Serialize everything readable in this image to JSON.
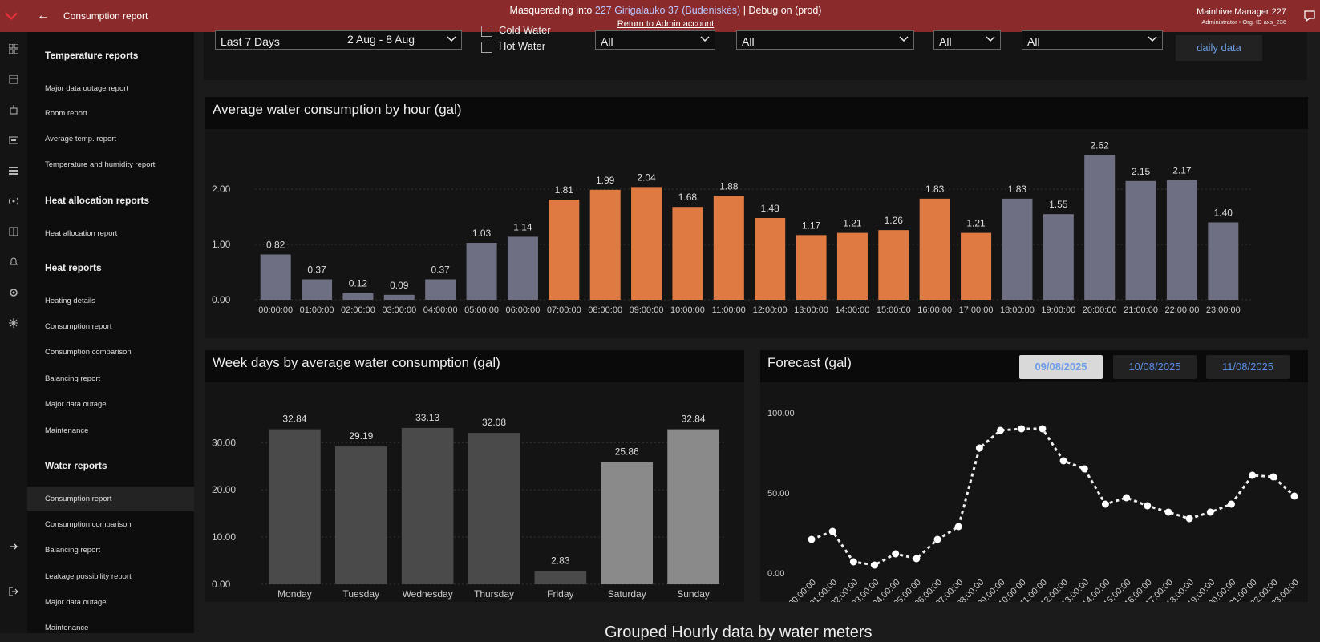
{
  "topbar": {
    "title": "Consumption report",
    "masq_prefix": "Masquerading into ",
    "masq_org": "227 Girigalauko 37 (Budeniskės)",
    "masq_suffix": " | Debug on (prod)",
    "return_link": "Return to Admin account",
    "user_name": "Mainhive Manager 227",
    "user_sub": "Administrator • Org. ID axs_236"
  },
  "sidebar": {
    "sections": [
      {
        "title": "Temperature reports",
        "items": [
          "Major data outage report",
          "Room report",
          "Average temp. report",
          "Temperature and humidity report"
        ]
      },
      {
        "title": "Heat allocation reports",
        "items": [
          "Heat allocation report"
        ]
      },
      {
        "title": "Heat reports",
        "items": [
          "Heating details",
          "Consumption report",
          "Consumption comparison",
          "Balancing report",
          "Major data outage",
          "Maintenance"
        ]
      },
      {
        "title": "Water reports",
        "items": [
          "Consumption report",
          "Consumption comparison",
          "Balancing report",
          "Leakage possibility report",
          "Major data outage",
          "Maintenance"
        ]
      }
    ],
    "active": "Consumption report"
  },
  "filters": {
    "period": "Last 7 Days",
    "period_range": "2 Aug - 8 Aug",
    "cold_water": "Cold Water",
    "hot_water": "Hot Water",
    "select1": "All",
    "select2": "All",
    "select3": "All",
    "select4": "All",
    "daily_button": "daily data"
  },
  "colors": {
    "gray": "#6e6f82",
    "orange": "#e07a43",
    "darkbar": "#4a4a4a",
    "lightbar": "#8a8a8a"
  },
  "chart_data": [
    {
      "type": "bar",
      "title": "Average water consumption by hour (gal)",
      "categories": [
        "00:00:00",
        "01:00:00",
        "02:00:00",
        "03:00:00",
        "04:00:00",
        "05:00:00",
        "06:00:00",
        "07:00:00",
        "08:00:00",
        "09:00:00",
        "10:00:00",
        "11:00:00",
        "12:00:00",
        "13:00:00",
        "14:00:00",
        "15:00:00",
        "16:00:00",
        "17:00:00",
        "18:00:00",
        "19:00:00",
        "20:00:00",
        "21:00:00",
        "22:00:00",
        "23:00:00"
      ],
      "values": [
        0.82,
        0.37,
        0.12,
        0.09,
        0.37,
        1.03,
        1.14,
        1.81,
        1.99,
        2.04,
        1.68,
        1.88,
        1.48,
        1.17,
        1.21,
        1.26,
        1.83,
        1.21,
        1.83,
        1.55,
        2.62,
        2.15,
        2.17,
        1.4
      ],
      "labels": [
        "0.82",
        "0.37",
        "0.12",
        "0.09",
        "0.37",
        "1.03",
        "1.14",
        "1.81",
        "1.99",
        "2.04",
        "1.68",
        "1.88",
        "1.48",
        "1.17",
        "1.21",
        "1.26",
        "1.83",
        "1.21",
        "1.83",
        "1.55",
        "2.62",
        "2.15",
        "2.17",
        "1.40"
      ],
      "highlight": [
        0,
        0,
        0,
        0,
        0,
        0,
        0,
        1,
        1,
        1,
        1,
        1,
        1,
        1,
        1,
        1,
        1,
        1,
        0,
        0,
        0,
        0,
        0,
        0
      ],
      "yticks": [
        "0.00",
        "1.00",
        "2.00"
      ],
      "ylim": [
        0,
        2.8
      ]
    },
    {
      "type": "bar",
      "title": "Week days by average water consumption (gal)",
      "categories": [
        "Monday",
        "Tuesday",
        "Wednesday",
        "Thursday",
        "Friday",
        "Saturday",
        "Sunday"
      ],
      "values": [
        32.84,
        29.19,
        33.13,
        32.08,
        2.83,
        25.86,
        32.84
      ],
      "labels": [
        "32.84",
        "29.19",
        "33.13",
        "32.08",
        "2.83",
        "25.86",
        "32.84"
      ],
      "shade": [
        0,
        0,
        0,
        0,
        0,
        1,
        1
      ],
      "yticks": [
        "0.00",
        "10.00",
        "20.00",
        "30.00"
      ],
      "ylim": [
        0,
        36
      ]
    },
    {
      "type": "line",
      "title": "Forecast (gal)",
      "x": [
        "00:00:00",
        "01:00:00",
        "02:00:00",
        "03:00:00",
        "04:00:00",
        "05:00:00",
        "06:00:00",
        "07:00:00",
        "08:00:00",
        "09:00:00",
        "10:00:00",
        "11:00:00",
        "12:00:00",
        "13:00:00",
        "14:00:00",
        "15:00:00",
        "16:00:00",
        "17:00:00",
        "18:00:00",
        "19:00:00",
        "20:00:00",
        "21:00:00",
        "22:00:00",
        "23:00:00"
      ],
      "y": [
        21,
        26,
        7,
        5,
        12,
        9,
        21,
        29,
        78,
        89,
        90,
        90,
        70,
        65,
        43,
        47,
        42,
        38,
        34,
        38,
        43,
        61,
        60,
        48
      ],
      "yticks": [
        "0.00",
        "50.00",
        "100.00"
      ],
      "ylim": [
        0,
        100
      ],
      "dates": [
        "09/08/2025",
        "10/08/2025",
        "11/08/2025"
      ]
    }
  ],
  "bottom_title": "Grouped Hourly data by water meters"
}
